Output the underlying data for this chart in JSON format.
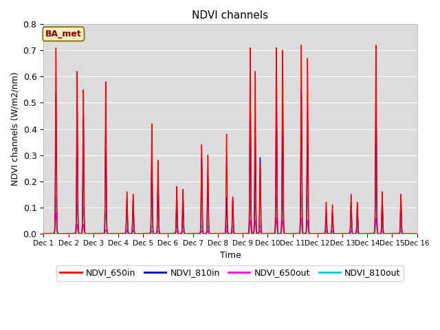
{
  "title": "NDVI channels",
  "xlabel": "Time",
  "ylabel": "NDVI channels (W/m2/nm)",
  "ylim": [
    0.0,
    0.8
  ],
  "xlim_days": [
    1,
    16
  ],
  "bg_color": "#dcdcdc",
  "annotation_text": "BA_met",
  "annotation_color": "#8B0000",
  "annotation_bg": "#f5f0c0",
  "lines": {
    "NDVI_650in": {
      "color": "#ff0000",
      "lw": 1.0
    },
    "NDVI_810in": {
      "color": "#0000cc",
      "lw": 1.0
    },
    "NDVI_650out": {
      "color": "#ff00ff",
      "lw": 1.0
    },
    "NDVI_810out": {
      "color": "#00ccdd",
      "lw": 1.0
    }
  },
  "day_peaks": [
    {
      "day": 1.5,
      "peaks": [
        [
          0.71,
          0.54,
          0.08,
          0.14
        ]
      ]
    },
    {
      "day": 2.35,
      "peaks": [
        [
          0.62,
          0.49,
          0.035,
          0.11
        ]
      ]
    },
    {
      "day": 2.6,
      "peaks": [
        [
          0.55,
          0.45,
          0.035,
          0.1
        ]
      ]
    },
    {
      "day": 3.5,
      "peaks": [
        [
          0.58,
          0.44,
          0.015,
          0.08
        ]
      ]
    },
    {
      "day": 4.35,
      "peaks": [
        [
          0.16,
          0.13,
          0.013,
          0.08
        ]
      ]
    },
    {
      "day": 4.6,
      "peaks": [
        [
          0.15,
          0.13,
          0.013,
          0.07
        ]
      ]
    },
    {
      "day": 5.35,
      "peaks": [
        [
          0.42,
          0.3,
          0.01,
          0.03
        ]
      ]
    },
    {
      "day": 5.6,
      "peaks": [
        [
          0.28,
          0.22,
          0.01,
          0.03
        ]
      ]
    },
    {
      "day": 6.35,
      "peaks": [
        [
          0.18,
          0.14,
          0.01,
          0.03
        ]
      ]
    },
    {
      "day": 6.6,
      "peaks": [
        [
          0.17,
          0.14,
          0.01,
          0.03
        ]
      ]
    },
    {
      "day": 7.35,
      "peaks": [
        [
          0.34,
          0.29,
          0.01,
          0.03
        ]
      ]
    },
    {
      "day": 7.6,
      "peaks": [
        [
          0.3,
          0.22,
          0.01,
          0.03
        ]
      ]
    },
    {
      "day": 8.35,
      "peaks": [
        [
          0.38,
          0.14,
          0.01,
          0.03
        ]
      ]
    },
    {
      "day": 8.6,
      "peaks": [
        [
          0.14,
          0.13,
          0.01,
          0.03
        ]
      ]
    },
    {
      "day": 9.3,
      "peaks": [
        [
          0.71,
          0.55,
          0.05,
          0.13
        ]
      ]
    },
    {
      "day": 9.5,
      "peaks": [
        [
          0.62,
          0.35,
          0.05,
          0.12
        ]
      ]
    },
    {
      "day": 9.7,
      "peaks": [
        [
          0.27,
          0.29,
          0.01,
          0.03
        ]
      ]
    },
    {
      "day": 10.35,
      "peaks": [
        [
          0.71,
          0.54,
          0.06,
          0.14
        ]
      ]
    },
    {
      "day": 10.6,
      "peaks": [
        [
          0.7,
          0.54,
          0.05,
          0.13
        ]
      ]
    },
    {
      "day": 11.35,
      "peaks": [
        [
          0.72,
          0.55,
          0.06,
          0.14
        ]
      ]
    },
    {
      "day": 11.6,
      "peaks": [
        [
          0.67,
          0.43,
          0.05,
          0.14
        ]
      ]
    },
    {
      "day": 12.35,
      "peaks": [
        [
          0.12,
          0.08,
          0.01,
          0.03
        ]
      ]
    },
    {
      "day": 12.6,
      "peaks": [
        [
          0.11,
          0.08,
          0.01,
          0.03
        ]
      ]
    },
    {
      "day": 13.35,
      "peaks": [
        [
          0.15,
          0.12,
          0.01,
          0.03
        ]
      ]
    },
    {
      "day": 13.6,
      "peaks": [
        [
          0.12,
          0.1,
          0.01,
          0.03
        ]
      ]
    },
    {
      "day": 14.35,
      "peaks": [
        [
          0.72,
          0.57,
          0.06,
          0.16
        ]
      ]
    },
    {
      "day": 14.6,
      "peaks": [
        [
          0.16,
          0.12,
          0.01,
          0.03
        ]
      ]
    },
    {
      "day": 15.35,
      "peaks": [
        [
          0.15,
          0.13,
          0.01,
          0.03
        ]
      ]
    }
  ],
  "xtick_labels": [
    "Dec 1",
    "Dec 2",
    "Dec 3",
    "Dec 4",
    "Dec 5",
    "Dec 6",
    "Dec 7",
    "Dec 8",
    "Dec 9",
    "Dec 10",
    "Dec 11",
    "Dec 12",
    "Dec 13",
    "Dec 14",
    "Dec 15",
    "Dec 16"
  ],
  "xtick_positions": [
    1,
    2,
    3,
    4,
    5,
    6,
    7,
    8,
    9,
    10,
    11,
    12,
    13,
    14,
    15,
    16
  ]
}
